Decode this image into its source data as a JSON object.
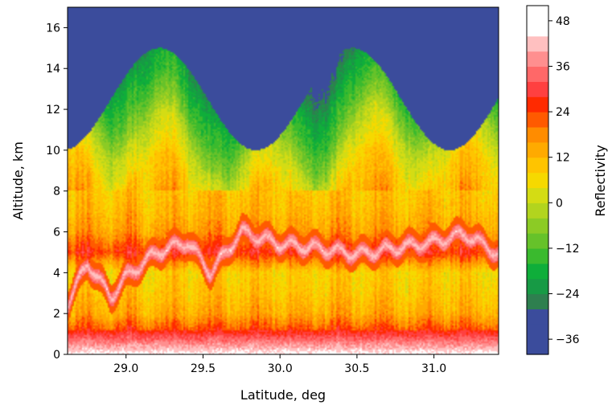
{
  "chart_data": {
    "type": "heatmap",
    "subtype": "filled-contour",
    "title": "",
    "xlabel": "Latitude, deg",
    "ylabel": "Altitude, km",
    "xlim": [
      28.62,
      31.42
    ],
    "ylim": [
      0,
      17
    ],
    "xticks": [
      29.0,
      29.5,
      30.0,
      30.5,
      31.0
    ],
    "xtick_labels": [
      "29.0",
      "29.5",
      "30.0",
      "30.5",
      "31.0"
    ],
    "yticks": [
      0,
      2,
      4,
      6,
      8,
      10,
      12,
      14,
      16
    ],
    "ytick_labels": [
      "0",
      "2",
      "4",
      "6",
      "8",
      "10",
      "12",
      "14",
      "16"
    ],
    "background_value": -40,
    "colorbar": {
      "label": "Reflectivity",
      "range": [
        -40,
        52
      ],
      "ticks": [
        -36,
        -24,
        -12,
        0,
        12,
        24,
        36,
        48
      ],
      "tick_labels": [
        "−36",
        "−24",
        "−12",
        "0",
        "12",
        "24",
        "36",
        "48"
      ],
      "levels": [
        -40,
        -32,
        -28,
        -24,
        -20,
        -16,
        -12,
        -8,
        -4,
        0,
        4,
        8,
        12,
        16,
        20,
        24,
        28,
        32,
        36,
        40,
        44,
        52
      ],
      "colors": [
        "#3b4c9c",
        "#3b4c9c",
        "#2e7f4f",
        "#179a45",
        "#0fae3a",
        "#3aba2e",
        "#66c22a",
        "#8ccb25",
        "#b2d41e",
        "#d4dc14",
        "#f6d900",
        "#ffc400",
        "#ffaa00",
        "#ff8c00",
        "#ff5a00",
        "#ff2a00",
        "#ff4040",
        "#ff6868",
        "#ff8f8f",
        "#ffc0c0",
        "#ffffff"
      ]
    },
    "vertical_profile": [
      {
        "altitude": 0.5,
        "reflectivity": 34
      },
      {
        "altitude": 1.0,
        "reflectivity": 26
      },
      {
        "altitude": 2.0,
        "reflectivity": 14
      },
      {
        "altitude": 3.0,
        "reflectivity": 10
      },
      {
        "altitude": 4.0,
        "reflectivity": 8
      },
      {
        "altitude": 5.0,
        "reflectivity": 26
      },
      {
        "altitude": 6.0,
        "reflectivity": 16
      },
      {
        "altitude": 7.0,
        "reflectivity": 12
      },
      {
        "altitude": 8.0,
        "reflectivity": 10
      },
      {
        "altitude": 9.0,
        "reflectivity": 4
      },
      {
        "altitude": 10.0,
        "reflectivity": 0
      },
      {
        "altitude": 11.0,
        "reflectivity": -8
      },
      {
        "altitude": 12.0,
        "reflectivity": -14
      },
      {
        "altitude": 13.0,
        "reflectivity": -18
      },
      {
        "altitude": 14.0,
        "reflectivity": -24
      },
      {
        "altitude": 15.0,
        "reflectivity": -30
      },
      {
        "altitude": 16.0,
        "reflectivity": -40
      }
    ],
    "bright_band": [
      {
        "latitude": 28.62,
        "altitude": 2.5
      },
      {
        "latitude": 28.75,
        "altitude": 4.5
      },
      {
        "latitude": 28.9,
        "altitude": 2.8
      },
      {
        "latitude": 29.0,
        "altitude": 3.8
      },
      {
        "latitude": 29.2,
        "altitude": 5.0
      },
      {
        "latitude": 29.4,
        "altitude": 5.5
      },
      {
        "latitude": 29.55,
        "altitude": 4.0
      },
      {
        "latitude": 29.75,
        "altitude": 6.0
      },
      {
        "latitude": 30.0,
        "altitude": 5.4
      },
      {
        "latitude": 30.25,
        "altitude": 5.2
      },
      {
        "latitude": 30.5,
        "altitude": 4.9
      },
      {
        "latitude": 30.75,
        "altitude": 5.2
      },
      {
        "latitude": 31.0,
        "altitude": 5.5
      },
      {
        "latitude": 31.2,
        "altitude": 5.9
      },
      {
        "latitude": 31.42,
        "altitude": 4.9
      }
    ]
  }
}
